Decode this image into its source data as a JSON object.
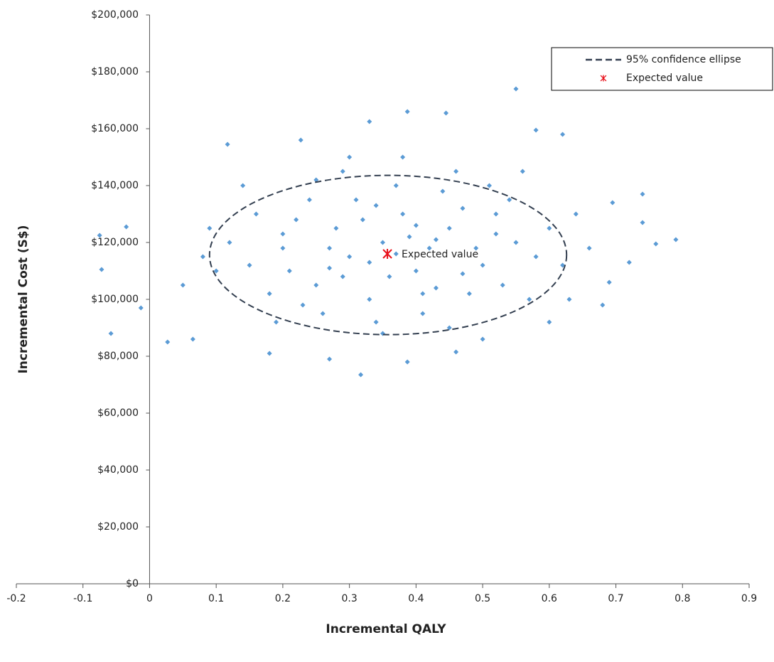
{
  "chart_data": {
    "type": "scatter",
    "x_label": "Incremental QALY",
    "y_label": "Incremental Cost (S$)",
    "xlim": [
      -0.2,
      0.9
    ],
    "xticks": [
      -0.2,
      -0.1,
      0,
      0.1,
      0.2,
      0.3,
      0.4,
      0.5,
      0.6,
      0.7,
      0.8,
      0.9
    ],
    "ylim": [
      0,
      200000
    ],
    "yticks": [
      {
        "value": 0,
        "label": "$0"
      },
      {
        "value": 20000,
        "label": "$20,000"
      },
      {
        "value": 40000,
        "label": "$40,000"
      },
      {
        "value": 60000,
        "label": "$60,000"
      },
      {
        "value": 80000,
        "label": "$80,000"
      },
      {
        "value": 100000,
        "label": "$100,000"
      },
      {
        "value": 120000,
        "label": "$120,000"
      },
      {
        "value": 140000,
        "label": "$140,000"
      },
      {
        "value": 160000,
        "label": "$160,000"
      },
      {
        "value": 180000,
        "label": "$180,000"
      },
      {
        "value": 200000,
        "label": "$200,000"
      }
    ],
    "grid": false,
    "legend": "upper right",
    "series": [
      {
        "name": "95% confidence ellipse",
        "kind": "ellipse",
        "color": "#333f50",
        "center": [
          0.358,
          115600
        ],
        "radii": [
          0.268,
          28000
        ]
      },
      {
        "name": "Expected value",
        "kind": "cross",
        "color": "#e8101a",
        "x": [
          0.357
        ],
        "values": [
          116000
        ]
      },
      {
        "kind": "dot",
        "color": "#5b9bd5",
        "x": [
          0.3,
          0.35,
          0.4,
          0.25,
          0.45,
          0.2,
          0.5,
          0.33,
          0.38,
          0.28,
          0.42,
          0.55,
          0.15,
          0.22,
          0.48,
          0.36,
          0.31,
          0.44,
          0.26,
          0.52,
          0.58,
          0.12,
          0.18,
          0.34,
          0.41,
          0.47,
          0.24,
          0.29,
          0.39,
          0.53,
          0.6,
          0.1,
          0.16,
          0.21,
          0.37,
          0.43,
          0.49,
          0.27,
          0.32,
          0.57,
          0.62,
          0.08,
          0.19,
          0.46,
          0.29,
          0.35,
          0.51,
          0.23,
          0.4,
          0.54,
          0.64,
          0.66,
          0.05,
          0.14,
          0.38,
          0.3,
          0.45,
          0.56,
          0.25,
          0.63,
          0.09,
          0.33,
          0.37,
          0.43,
          0.27,
          0.47,
          0.2,
          0.52,
          0.34,
          0.41,
          0.55,
          0.387,
          0.445,
          0.33,
          0.117,
          0.227,
          0.79,
          0.76,
          0.74,
          0.74,
          0.695,
          0.68,
          0.317,
          0.387,
          -0.058,
          -0.072,
          -0.075,
          -0.035,
          -0.013,
          0.027,
          0.46,
          0.27,
          0.62,
          0.58,
          0.72,
          0.69,
          0.065,
          0.18,
          0.5,
          0.6
        ],
        "values": [
          115000,
          120000,
          110000,
          105000,
          125000,
          118000,
          112000,
          100000,
          130000,
          125000,
          118000,
          120000,
          112000,
          128000,
          102000,
          108000,
          135000,
          138000,
          95000,
          130000,
          115000,
          120000,
          102000,
          92000,
          95000,
          132000,
          135000,
          108000,
          122000,
          105000,
          125000,
          110000,
          130000,
          110000,
          140000,
          104000,
          118000,
          118000,
          128000,
          100000,
          112000,
          115000,
          92000,
          145000,
          145000,
          88000,
          140000,
          98000,
          126000,
          135000,
          130000,
          118000,
          105000,
          140000,
          150000,
          150000,
          90000,
          145000,
          142000,
          100000,
          125000,
          113000,
          116000,
          121000,
          111000,
          109000,
          123000,
          123000,
          133000,
          102000,
          174000,
          166000,
          165500,
          162500,
          154500,
          156000,
          121000,
          119500,
          137000,
          127000,
          134000,
          98000,
          73500,
          78000,
          88000,
          110500,
          122500,
          125500,
          97000,
          85000,
          81500,
          79000,
          158000,
          159500,
          113000,
          106000,
          86000,
          81000,
          86000,
          92000
        ]
      }
    ]
  }
}
